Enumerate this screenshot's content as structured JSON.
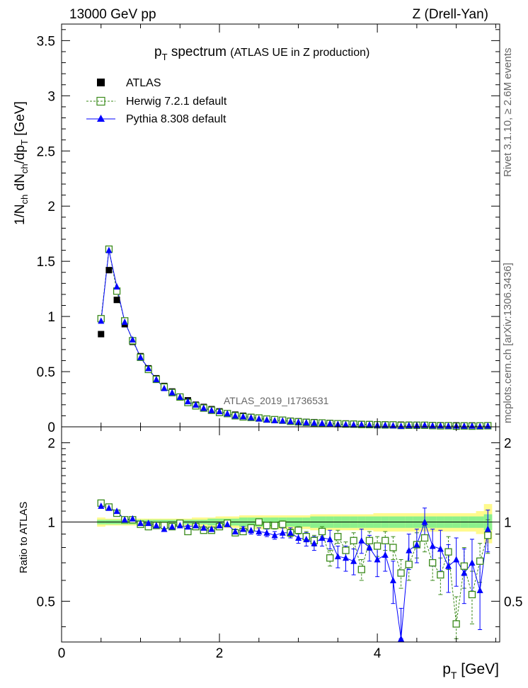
{
  "header": {
    "left": "13000 GeV pp",
    "right": "Z (Drell-Yan)"
  },
  "side_labels": {
    "rivet": "Rivet 3.1.10, ≥ 2.6M events",
    "mcplots": "mcplots.cern.ch [arXiv:1306.3436]"
  },
  "chart_data": [
    {
      "type": "scatter",
      "title_main": "p",
      "title_sub": "T",
      "title_rest": "spectrum",
      "title_paren": "(ATLAS UE in Z production)",
      "analysis_label": "ATLAS_2019_I1736531",
      "ylabel": "1/N_ch dN_ch/dp_T [GeV]",
      "ylim": [
        0,
        3.65
      ],
      "xlim": [
        0,
        5.55
      ],
      "yticks": [
        "0",
        "0.5",
        "1",
        "1.5",
        "2",
        "2.5",
        "3",
        "3.5"
      ],
      "legend_position": "top-left",
      "series": [
        {
          "name": "ATLAS",
          "color": "#000000",
          "marker": "filled-square",
          "x": [
            0.5,
            0.6,
            0.7,
            0.8,
            0.9,
            1.0,
            1.1,
            1.2,
            1.3,
            1.4,
            1.5,
            1.6,
            1.7,
            1.8,
            1.9,
            2.0,
            2.1,
            2.2,
            2.3,
            2.4,
            2.5,
            2.6,
            2.7,
            2.8,
            2.9,
            3.0,
            3.1,
            3.2,
            3.3,
            3.4,
            3.5,
            3.6,
            3.7,
            3.8,
            3.9,
            4.0,
            4.1,
            4.2,
            4.3,
            4.4,
            4.5,
            4.6,
            4.7,
            4.8,
            4.9,
            5.0,
            5.1,
            5.2,
            5.3,
            5.4
          ],
          "y": [
            0.84,
            1.42,
            1.15,
            0.93,
            0.77,
            0.64,
            0.53,
            0.44,
            0.37,
            0.32,
            0.27,
            0.24,
            0.2,
            0.18,
            0.16,
            0.14,
            0.12,
            0.11,
            0.1,
            0.09,
            0.08,
            0.07,
            0.065,
            0.06,
            0.055,
            0.05,
            0.045,
            0.042,
            0.038,
            0.035,
            0.032,
            0.03,
            0.028,
            0.026,
            0.024,
            0.022,
            0.021,
            0.02,
            0.019,
            0.018,
            0.017,
            0.016,
            0.015,
            0.014,
            0.013,
            0.013,
            0.012,
            0.012,
            0.011,
            0.011
          ]
        },
        {
          "name": "Herwig 7.2.1 default",
          "color": "#3a8a1a",
          "marker": "open-square",
          "x": [
            0.5,
            0.6,
            0.7,
            0.8,
            0.9,
            1.0,
            1.1,
            1.2,
            1.3,
            1.4,
            1.5,
            1.6,
            1.7,
            1.8,
            1.9,
            2.0,
            2.1,
            2.2,
            2.3,
            2.4,
            2.5,
            2.6,
            2.7,
            2.8,
            2.9,
            3.0,
            3.1,
            3.2,
            3.3,
            3.4,
            3.5,
            3.6,
            3.7,
            3.8,
            3.9,
            4.0,
            4.1,
            4.2,
            4.3,
            4.4,
            4.5,
            4.6,
            4.7,
            4.8,
            4.9,
            5.0,
            5.1,
            5.2,
            5.3,
            5.4
          ],
          "y": [
            0.98,
            1.61,
            1.23,
            0.96,
            0.78,
            0.63,
            0.52,
            0.43,
            0.36,
            0.31,
            0.27,
            0.22,
            0.19,
            0.17,
            0.15,
            0.13,
            0.12,
            0.1,
            0.09,
            0.085,
            0.08,
            0.07,
            0.065,
            0.06,
            0.05,
            0.045,
            0.04,
            0.036,
            0.035,
            0.03,
            0.028,
            0.025,
            0.024,
            0.021,
            0.02,
            0.018,
            0.017,
            0.017,
            0.012,
            0.014,
            0.014,
            0.014,
            0.011,
            0.009,
            0.01,
            0.006,
            0.008,
            0.006,
            0.008,
            0.01
          ]
        },
        {
          "name": "Pythia 8.308 default",
          "color": "#0000ff",
          "marker": "filled-triangle",
          "x": [
            0.5,
            0.6,
            0.7,
            0.8,
            0.9,
            1.0,
            1.1,
            1.2,
            1.3,
            1.4,
            1.5,
            1.6,
            1.7,
            1.8,
            1.9,
            2.0,
            2.1,
            2.2,
            2.3,
            2.4,
            2.5,
            2.6,
            2.7,
            2.8,
            2.9,
            3.0,
            3.1,
            3.2,
            3.3,
            3.4,
            3.5,
            3.6,
            3.7,
            3.8,
            3.9,
            4.0,
            4.1,
            4.2,
            4.3,
            4.4,
            4.5,
            4.6,
            4.7,
            4.8,
            4.9,
            5.0,
            5.1,
            5.2,
            5.3,
            5.4
          ],
          "y": [
            0.96,
            1.6,
            1.27,
            0.95,
            0.79,
            0.63,
            0.53,
            0.43,
            0.35,
            0.31,
            0.27,
            0.23,
            0.2,
            0.17,
            0.15,
            0.14,
            0.12,
            0.1,
            0.094,
            0.084,
            0.074,
            0.064,
            0.058,
            0.055,
            0.05,
            0.044,
            0.039,
            0.035,
            0.033,
            0.03,
            0.024,
            0.022,
            0.02,
            0.022,
            0.019,
            0.016,
            0.016,
            0.012,
            0.007,
            0.014,
            0.014,
            0.016,
            0.011,
            0.011,
            0.009,
            0.01,
            0.008,
            0.009,
            0.006,
            0.01
          ]
        }
      ]
    },
    {
      "type": "scatter",
      "ylabel": "Ratio to ATLAS",
      "xlabel_main": "p",
      "xlabel_sub": "T",
      "xlabel_rest": "[GeV]",
      "xlim": [
        0,
        5.55
      ],
      "ylim": [
        0.35,
        2.3
      ],
      "xticks": [
        "0",
        "2",
        "4"
      ],
      "yticks": [
        "0.5",
        "1",
        "2"
      ],
      "band_colors": {
        "inner": "#8cf08c",
        "outer": "#fffa8c"
      },
      "x": [
        0.5,
        0.6,
        0.7,
        0.8,
        0.9,
        1.0,
        1.1,
        1.2,
        1.3,
        1.4,
        1.5,
        1.6,
        1.7,
        1.8,
        1.9,
        2.0,
        2.1,
        2.2,
        2.3,
        2.4,
        2.5,
        2.6,
        2.7,
        2.8,
        2.9,
        3.0,
        3.1,
        3.2,
        3.3,
        3.4,
        3.5,
        3.6,
        3.7,
        3.8,
        3.9,
        4.0,
        4.1,
        4.2,
        4.3,
        4.4,
        4.5,
        4.6,
        4.7,
        4.8,
        4.9,
        5.0,
        5.1,
        5.2,
        5.3,
        5.4
      ],
      "band_inner": [
        0.02,
        0.02,
        0.02,
        0.02,
        0.02,
        0.02,
        0.02,
        0.02,
        0.02,
        0.02,
        0.02,
        0.02,
        0.02,
        0.02,
        0.03,
        0.03,
        0.03,
        0.03,
        0.04,
        0.04,
        0.04,
        0.04,
        0.04,
        0.04,
        0.04,
        0.04,
        0.04,
        0.05,
        0.05,
        0.05,
        0.05,
        0.05,
        0.05,
        0.05,
        0.05,
        0.05,
        0.05,
        0.05,
        0.05,
        0.05,
        0.05,
        0.05,
        0.05,
        0.05,
        0.05,
        0.05,
        0.05,
        0.05,
        0.05,
        0.07
      ],
      "band_outer": [
        0.04,
        0.03,
        0.03,
        0.03,
        0.03,
        0.03,
        0.03,
        0.03,
        0.03,
        0.03,
        0.03,
        0.03,
        0.04,
        0.04,
        0.04,
        0.05,
        0.05,
        0.05,
        0.06,
        0.06,
        0.06,
        0.06,
        0.06,
        0.06,
        0.06,
        0.06,
        0.06,
        0.07,
        0.07,
        0.07,
        0.07,
        0.07,
        0.07,
        0.07,
        0.07,
        0.08,
        0.08,
        0.08,
        0.08,
        0.08,
        0.08,
        0.08,
        0.08,
        0.08,
        0.08,
        0.08,
        0.08,
        0.08,
        0.1,
        0.17
      ],
      "series": [
        {
          "name": "Herwig 7.2.1 default",
          "color": "#3a8a1a",
          "marker": "open-square",
          "values": [
            1.18,
            1.14,
            1.08,
            1.02,
            1.02,
            0.98,
            0.96,
            0.97,
            0.97,
            0.96,
            0.99,
            0.92,
            0.96,
            0.93,
            0.93,
            0.96,
            0.99,
            0.91,
            0.92,
            0.95,
            1.0,
            0.97,
            0.97,
            0.98,
            0.91,
            0.93,
            0.88,
            0.85,
            0.92,
            0.73,
            0.88,
            0.78,
            0.85,
            0.66,
            0.85,
            0.81,
            0.85,
            0.8,
            0.64,
            0.69,
            0.82,
            0.87,
            0.7,
            0.63,
            0.77,
            0.41,
            0.68,
            0.53,
            0.71,
            0.89
          ],
          "errors": [
            0.01,
            0.01,
            0.01,
            0.01,
            0.01,
            0.01,
            0.01,
            0.01,
            0.01,
            0.01,
            0.01,
            0.01,
            0.01,
            0.01,
            0.01,
            0.02,
            0.02,
            0.02,
            0.02,
            0.02,
            0.02,
            0.03,
            0.03,
            0.03,
            0.03,
            0.03,
            0.04,
            0.04,
            0.04,
            0.05,
            0.05,
            0.06,
            0.06,
            0.06,
            0.07,
            0.07,
            0.07,
            0.08,
            0.08,
            0.09,
            0.09,
            0.1,
            0.1,
            0.1,
            0.11,
            0.11,
            0.12,
            0.12,
            0.12,
            0.13
          ]
        },
        {
          "name": "Pythia 8.308 default",
          "color": "#0000ff",
          "marker": "filled-triangle",
          "values": [
            1.15,
            1.13,
            1.1,
            1.02,
            1.03,
            0.99,
            0.99,
            0.97,
            0.94,
            0.96,
            0.97,
            0.96,
            0.97,
            0.95,
            0.94,
            0.97,
            0.98,
            0.92,
            0.94,
            0.93,
            0.92,
            0.91,
            0.89,
            0.91,
            0.91,
            0.87,
            0.86,
            0.83,
            0.87,
            0.86,
            0.74,
            0.73,
            0.71,
            0.85,
            0.8,
            0.72,
            0.75,
            0.6,
            0.36,
            0.78,
            0.82,
            1.0,
            0.81,
            0.79,
            0.68,
            0.72,
            0.64,
            0.7,
            0.55,
            0.94
          ],
          "errors": [
            0.01,
            0.01,
            0.01,
            0.01,
            0.01,
            0.01,
            0.01,
            0.01,
            0.01,
            0.01,
            0.01,
            0.01,
            0.01,
            0.01,
            0.01,
            0.02,
            0.02,
            0.02,
            0.02,
            0.03,
            0.03,
            0.03,
            0.03,
            0.04,
            0.04,
            0.04,
            0.05,
            0.05,
            0.06,
            0.07,
            0.07,
            0.08,
            0.08,
            0.09,
            0.09,
            0.1,
            0.1,
            0.11,
            0.11,
            0.12,
            0.12,
            0.13,
            0.13,
            0.14,
            0.14,
            0.15,
            0.15,
            0.16,
            0.16,
            0.17
          ]
        }
      ]
    }
  ]
}
